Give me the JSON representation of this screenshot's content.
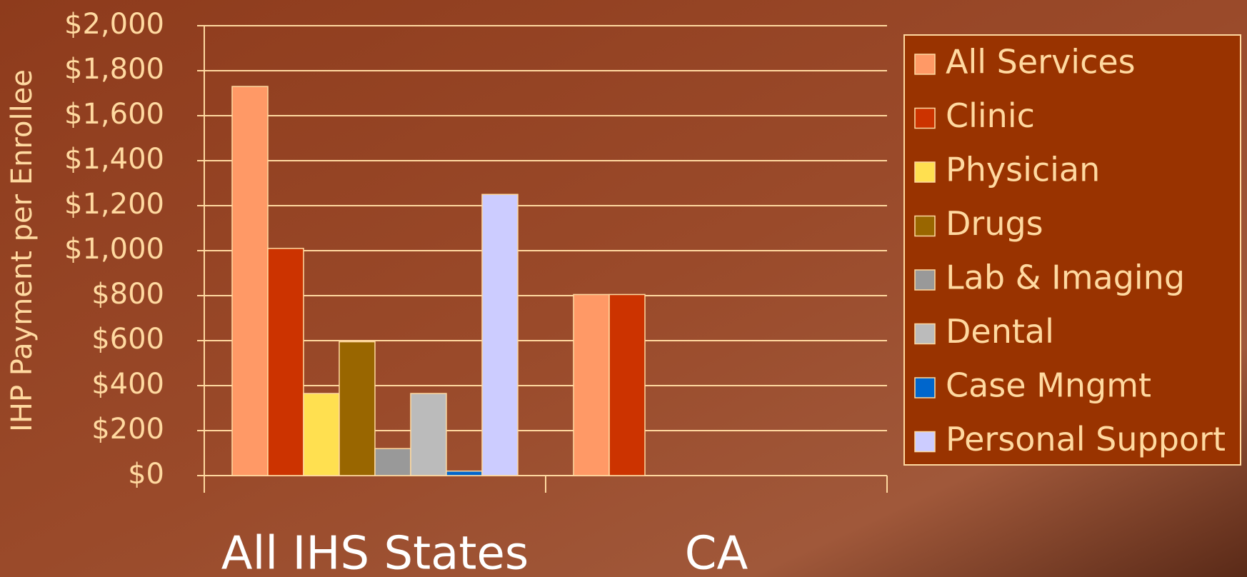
{
  "chart_data": {
    "type": "bar",
    "y_label": "IHP Payment per Enrollee",
    "categories": [
      "All IHS States",
      "CA"
    ],
    "series": [
      {
        "name": "All Services",
        "color": "#ff9966",
        "values": [
          1730,
          805
        ]
      },
      {
        "name": "Clinic",
        "color": "#cc3300",
        "values": [
          1010,
          805
        ]
      },
      {
        "name": "Physician",
        "color": "#ffe050",
        "values": [
          365,
          null
        ]
      },
      {
        "name": "Drugs",
        "color": "#996600",
        "values": [
          595,
          null
        ]
      },
      {
        "name": "Lab & Imaging",
        "color": "#999999",
        "values": [
          120,
          null
        ]
      },
      {
        "name": "Dental",
        "color": "#bbbbbb",
        "values": [
          365,
          null
        ]
      },
      {
        "name": "Case Mngmt",
        "color": "#0066cc",
        "values": [
          20,
          null
        ]
      },
      {
        "name": "Personal Support",
        "color": "#ccccff",
        "values": [
          1250,
          null
        ]
      }
    ],
    "ylim": [
      0,
      2000
    ],
    "yticks": [
      {
        "value": 0,
        "label": "$0"
      },
      {
        "value": 200,
        "label": "$200"
      },
      {
        "value": 400,
        "label": "$400"
      },
      {
        "value": 600,
        "label": "$600"
      },
      {
        "value": 800,
        "label": "$800"
      },
      {
        "value": 1000,
        "label": "$1,000"
      },
      {
        "value": 1200,
        "label": "$1,200"
      },
      {
        "value": 1400,
        "label": "$1,400"
      },
      {
        "value": 1600,
        "label": "$1,600"
      },
      {
        "value": 1800,
        "label": "$1,800"
      },
      {
        "value": 2000,
        "label": "$2,000"
      }
    ],
    "grid": true,
    "legend": "right"
  }
}
